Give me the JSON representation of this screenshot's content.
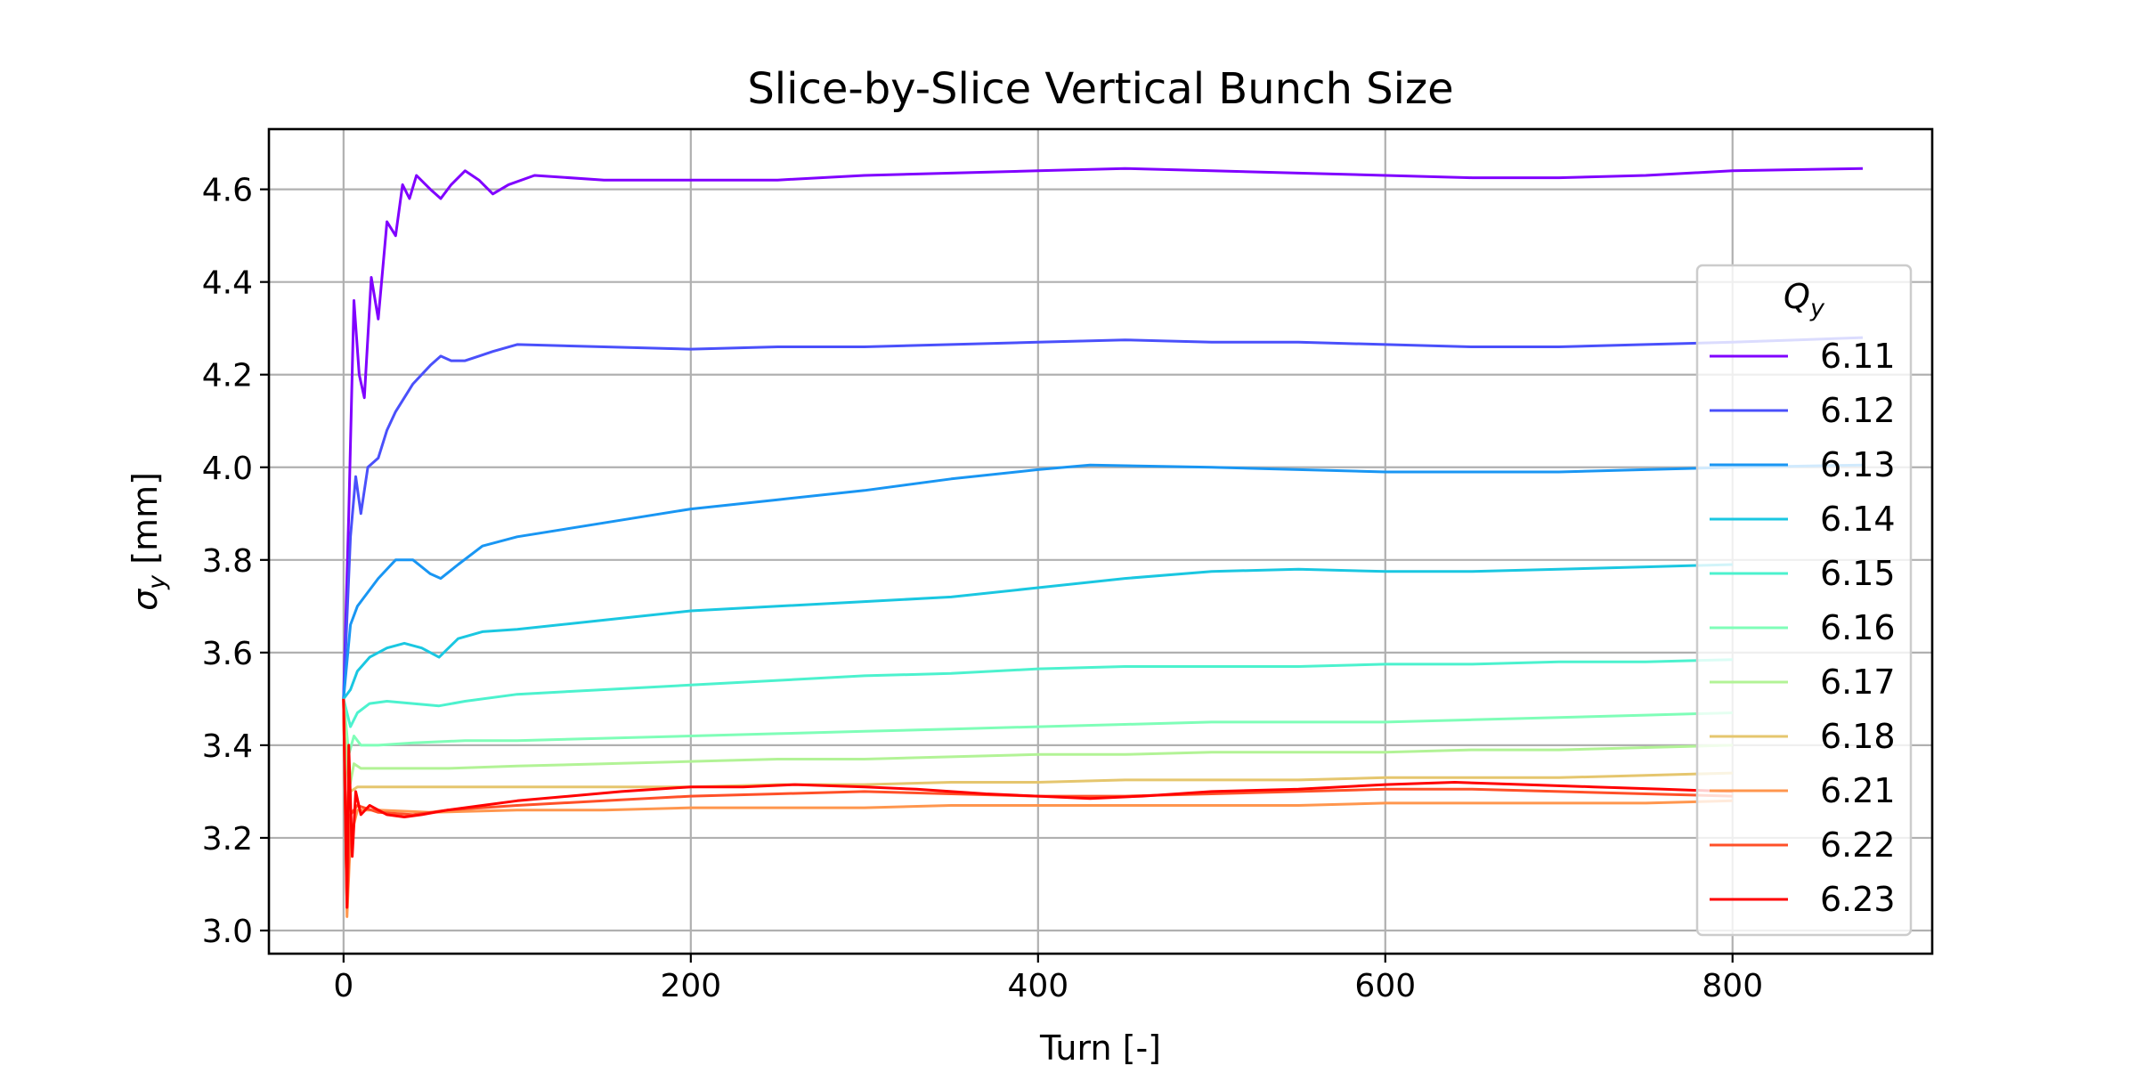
{
  "chart_data": {
    "type": "line",
    "title": "Slice-by-Slice Vertical Bunch Size",
    "xlabel": "Turn [-]",
    "ylabel_main": "σ",
    "ylabel_sub": "y",
    "ylabel_unit": " [mm]",
    "xlim": [
      -43,
      915
    ],
    "ylim": [
      2.95,
      4.73
    ],
    "xticks": [
      0,
      200,
      400,
      600,
      800
    ],
    "xtick_labels": [
      "0",
      "200",
      "400",
      "600",
      "800"
    ],
    "yticks": [
      3.0,
      3.2,
      3.4,
      3.6,
      3.8,
      4.0,
      4.2,
      4.4,
      4.6
    ],
    "ytick_labels": [
      "3.0",
      "3.2",
      "3.4",
      "3.6",
      "3.8",
      "4.0",
      "4.2",
      "4.4",
      "4.6"
    ],
    "grid": true,
    "legend": {
      "title_main": "Q",
      "title_sub": "y",
      "placement": "right"
    },
    "series": [
      {
        "name": "6.11",
        "color": "#8000ff",
        "points": [
          [
            0,
            3.5
          ],
          [
            3,
            3.9
          ],
          [
            6,
            4.36
          ],
          [
            9,
            4.2
          ],
          [
            12,
            4.15
          ],
          [
            16,
            4.41
          ],
          [
            20,
            4.32
          ],
          [
            25,
            4.53
          ],
          [
            30,
            4.5
          ],
          [
            34,
            4.61
          ],
          [
            38,
            4.58
          ],
          [
            42,
            4.63
          ],
          [
            50,
            4.6
          ],
          [
            56,
            4.58
          ],
          [
            62,
            4.61
          ],
          [
            70,
            4.64
          ],
          [
            78,
            4.62
          ],
          [
            86,
            4.59
          ],
          [
            95,
            4.61
          ],
          [
            110,
            4.63
          ],
          [
            150,
            4.62
          ],
          [
            200,
            4.62
          ],
          [
            250,
            4.62
          ],
          [
            300,
            4.63
          ],
          [
            350,
            4.635
          ],
          [
            400,
            4.64
          ],
          [
            450,
            4.645
          ],
          [
            500,
            4.64
          ],
          [
            550,
            4.635
          ],
          [
            600,
            4.63
          ],
          [
            650,
            4.625
          ],
          [
            700,
            4.625
          ],
          [
            750,
            4.63
          ],
          [
            800,
            4.64
          ],
          [
            875,
            4.645
          ]
        ]
      },
      {
        "name": "6.12",
        "color": "#4a50fb",
        "points": [
          [
            0,
            3.5
          ],
          [
            4,
            3.85
          ],
          [
            7,
            3.98
          ],
          [
            10,
            3.9
          ],
          [
            14,
            4.0
          ],
          [
            20,
            4.02
          ],
          [
            25,
            4.08
          ],
          [
            30,
            4.12
          ],
          [
            40,
            4.18
          ],
          [
            50,
            4.22
          ],
          [
            56,
            4.24
          ],
          [
            62,
            4.23
          ],
          [
            70,
            4.23
          ],
          [
            78,
            4.24
          ],
          [
            86,
            4.25
          ],
          [
            100,
            4.265
          ],
          [
            150,
            4.26
          ],
          [
            200,
            4.255
          ],
          [
            250,
            4.26
          ],
          [
            300,
            4.26
          ],
          [
            350,
            4.265
          ],
          [
            400,
            4.27
          ],
          [
            450,
            4.275
          ],
          [
            500,
            4.27
          ],
          [
            550,
            4.27
          ],
          [
            600,
            4.265
          ],
          [
            650,
            4.26
          ],
          [
            700,
            4.26
          ],
          [
            750,
            4.265
          ],
          [
            800,
            4.27
          ],
          [
            875,
            4.28
          ]
        ]
      },
      {
        "name": "6.13",
        "color": "#1996f3",
        "points": [
          [
            0,
            3.5
          ],
          [
            4,
            3.66
          ],
          [
            8,
            3.7
          ],
          [
            12,
            3.72
          ],
          [
            20,
            3.76
          ],
          [
            30,
            3.8
          ],
          [
            40,
            3.8
          ],
          [
            50,
            3.77
          ],
          [
            56,
            3.76
          ],
          [
            66,
            3.79
          ],
          [
            80,
            3.83
          ],
          [
            100,
            3.85
          ],
          [
            150,
            3.88
          ],
          [
            200,
            3.91
          ],
          [
            250,
            3.93
          ],
          [
            300,
            3.95
          ],
          [
            350,
            3.975
          ],
          [
            400,
            3.995
          ],
          [
            430,
            4.005
          ],
          [
            500,
            4.0
          ],
          [
            550,
            3.995
          ],
          [
            600,
            3.99
          ],
          [
            650,
            3.99
          ],
          [
            700,
            3.99
          ],
          [
            750,
            3.995
          ],
          [
            800,
            4.0
          ],
          [
            875,
            4.005
          ]
        ]
      },
      {
        "name": "6.14",
        "color": "#1ac7e1",
        "points": [
          [
            0,
            3.5
          ],
          [
            4,
            3.52
          ],
          [
            8,
            3.56
          ],
          [
            15,
            3.59
          ],
          [
            25,
            3.61
          ],
          [
            35,
            3.62
          ],
          [
            45,
            3.61
          ],
          [
            55,
            3.59
          ],
          [
            66,
            3.63
          ],
          [
            80,
            3.645
          ],
          [
            100,
            3.65
          ],
          [
            150,
            3.67
          ],
          [
            200,
            3.69
          ],
          [
            250,
            3.7
          ],
          [
            300,
            3.71
          ],
          [
            350,
            3.72
          ],
          [
            400,
            3.74
          ],
          [
            450,
            3.76
          ],
          [
            500,
            3.775
          ],
          [
            550,
            3.78
          ],
          [
            600,
            3.775
          ],
          [
            650,
            3.775
          ],
          [
            700,
            3.78
          ],
          [
            750,
            3.785
          ],
          [
            800,
            3.79
          ]
        ]
      },
      {
        "name": "6.15",
        "color": "#4cf2ce",
        "points": [
          [
            0,
            3.5
          ],
          [
            4,
            3.44
          ],
          [
            8,
            3.47
          ],
          [
            15,
            3.49
          ],
          [
            25,
            3.495
          ],
          [
            40,
            3.49
          ],
          [
            55,
            3.485
          ],
          [
            70,
            3.495
          ],
          [
            100,
            3.51
          ],
          [
            150,
            3.52
          ],
          [
            200,
            3.53
          ],
          [
            250,
            3.54
          ],
          [
            300,
            3.55
          ],
          [
            350,
            3.555
          ],
          [
            400,
            3.565
          ],
          [
            450,
            3.57
          ],
          [
            500,
            3.57
          ],
          [
            550,
            3.57
          ],
          [
            600,
            3.575
          ],
          [
            650,
            3.575
          ],
          [
            700,
            3.58
          ],
          [
            750,
            3.58
          ],
          [
            800,
            3.585
          ]
        ]
      },
      {
        "name": "6.16",
        "color": "#7ffeb8",
        "points": [
          [
            0,
            3.5
          ],
          [
            3,
            3.38
          ],
          [
            6,
            3.42
          ],
          [
            10,
            3.4
          ],
          [
            20,
            3.4
          ],
          [
            40,
            3.405
          ],
          [
            70,
            3.41
          ],
          [
            100,
            3.41
          ],
          [
            150,
            3.415
          ],
          [
            200,
            3.42
          ],
          [
            250,
            3.425
          ],
          [
            300,
            3.43
          ],
          [
            350,
            3.435
          ],
          [
            400,
            3.44
          ],
          [
            450,
            3.445
          ],
          [
            500,
            3.45
          ],
          [
            550,
            3.45
          ],
          [
            600,
            3.45
          ],
          [
            650,
            3.455
          ],
          [
            700,
            3.46
          ],
          [
            750,
            3.465
          ],
          [
            800,
            3.47
          ]
        ]
      },
      {
        "name": "6.17",
        "color": "#b2f396",
        "points": [
          [
            0,
            3.5
          ],
          [
            3,
            3.3
          ],
          [
            6,
            3.36
          ],
          [
            10,
            3.35
          ],
          [
            30,
            3.35
          ],
          [
            60,
            3.35
          ],
          [
            100,
            3.355
          ],
          [
            150,
            3.36
          ],
          [
            200,
            3.365
          ],
          [
            250,
            3.37
          ],
          [
            300,
            3.37
          ],
          [
            350,
            3.375
          ],
          [
            400,
            3.38
          ],
          [
            450,
            3.38
          ],
          [
            500,
            3.385
          ],
          [
            550,
            3.385
          ],
          [
            600,
            3.385
          ],
          [
            650,
            3.39
          ],
          [
            700,
            3.39
          ],
          [
            750,
            3.395
          ],
          [
            800,
            3.4
          ]
        ]
      },
      {
        "name": "6.18",
        "color": "#e5c66e",
        "points": [
          [
            0,
            3.5
          ],
          [
            2,
            3.1
          ],
          [
            4,
            3.3
          ],
          [
            8,
            3.31
          ],
          [
            20,
            3.31
          ],
          [
            50,
            3.31
          ],
          [
            100,
            3.31
          ],
          [
            150,
            3.31
          ],
          [
            200,
            3.31
          ],
          [
            250,
            3.315
          ],
          [
            300,
            3.315
          ],
          [
            350,
            3.32
          ],
          [
            400,
            3.32
          ],
          [
            450,
            3.325
          ],
          [
            500,
            3.325
          ],
          [
            550,
            3.325
          ],
          [
            600,
            3.33
          ],
          [
            650,
            3.33
          ],
          [
            700,
            3.33
          ],
          [
            750,
            3.335
          ],
          [
            800,
            3.34
          ]
        ]
      },
      {
        "name": "6.21",
        "color": "#ff964e",
        "points": [
          [
            0,
            3.5
          ],
          [
            2,
            3.03
          ],
          [
            4,
            3.2
          ],
          [
            8,
            3.26
          ],
          [
            20,
            3.26
          ],
          [
            50,
            3.255
          ],
          [
            100,
            3.26
          ],
          [
            150,
            3.26
          ],
          [
            200,
            3.265
          ],
          [
            250,
            3.265
          ],
          [
            300,
            3.265
          ],
          [
            350,
            3.27
          ],
          [
            400,
            3.27
          ],
          [
            450,
            3.27
          ],
          [
            500,
            3.27
          ],
          [
            550,
            3.27
          ],
          [
            600,
            3.275
          ],
          [
            650,
            3.275
          ],
          [
            700,
            3.275
          ],
          [
            750,
            3.275
          ],
          [
            800,
            3.28
          ]
        ]
      },
      {
        "name": "6.22",
        "color": "#ff5028",
        "points": [
          [
            0,
            3.5
          ],
          [
            2,
            3.05
          ],
          [
            4,
            3.25
          ],
          [
            8,
            3.27
          ],
          [
            20,
            3.255
          ],
          [
            40,
            3.25
          ],
          [
            60,
            3.26
          ],
          [
            100,
            3.27
          ],
          [
            150,
            3.28
          ],
          [
            200,
            3.29
          ],
          [
            250,
            3.295
          ],
          [
            300,
            3.3
          ],
          [
            350,
            3.295
          ],
          [
            400,
            3.29
          ],
          [
            450,
            3.29
          ],
          [
            500,
            3.295
          ],
          [
            550,
            3.3
          ],
          [
            600,
            3.305
          ],
          [
            650,
            3.305
          ],
          [
            700,
            3.3
          ],
          [
            750,
            3.295
          ],
          [
            800,
            3.29
          ]
        ]
      },
      {
        "name": "6.23",
        "color": "#ff0000",
        "points": [
          [
            0,
            3.5
          ],
          [
            2,
            3.05
          ],
          [
            3,
            3.4
          ],
          [
            5,
            3.16
          ],
          [
            7,
            3.3
          ],
          [
            10,
            3.25
          ],
          [
            15,
            3.27
          ],
          [
            25,
            3.25
          ],
          [
            35,
            3.245
          ],
          [
            45,
            3.25
          ],
          [
            60,
            3.26
          ],
          [
            80,
            3.27
          ],
          [
            100,
            3.28
          ],
          [
            130,
            3.29
          ],
          [
            160,
            3.3
          ],
          [
            200,
            3.31
          ],
          [
            230,
            3.31
          ],
          [
            260,
            3.315
          ],
          [
            300,
            3.31
          ],
          [
            330,
            3.305
          ],
          [
            370,
            3.295
          ],
          [
            400,
            3.29
          ],
          [
            430,
            3.285
          ],
          [
            460,
            3.29
          ],
          [
            500,
            3.3
          ],
          [
            550,
            3.305
          ],
          [
            600,
            3.315
          ],
          [
            640,
            3.32
          ],
          [
            680,
            3.315
          ],
          [
            720,
            3.31
          ],
          [
            760,
            3.305
          ],
          [
            800,
            3.3
          ]
        ]
      }
    ]
  }
}
